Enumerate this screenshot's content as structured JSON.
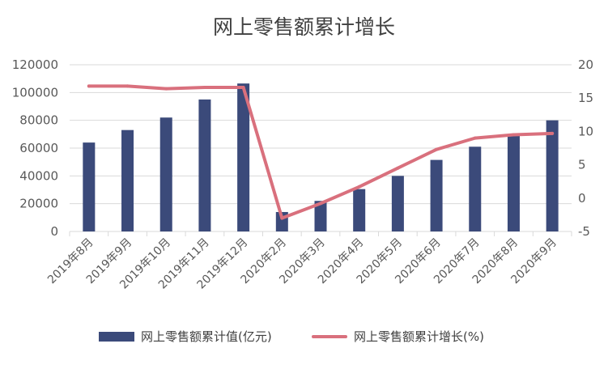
{
  "chart_data": {
    "type": "bar",
    "title": "网上零售额累计增长",
    "categories": [
      "2019年8月",
      "2019年9月",
      "2019年10月",
      "2019年11月",
      "2019年12月",
      "2020年2月",
      "2020年3月",
      "2020年4月",
      "2020年5月",
      "2020年6月",
      "2020年7月",
      "2020年8月",
      "2020年9月"
    ],
    "series": [
      {
        "name": "网上零售额累计值(亿元)",
        "type": "bar",
        "axis": "left",
        "color": "#3b4a7a",
        "values": [
          64000,
          73000,
          82000,
          95000,
          106500,
          14000,
          22000,
          30500,
          40000,
          51500,
          61000,
          70000,
          80000
        ]
      },
      {
        "name": "网上零售额累计增长(%)",
        "type": "line",
        "axis": "right",
        "color": "#d9707d",
        "values": [
          16.8,
          16.8,
          16.4,
          16.6,
          16.6,
          -3.0,
          -0.8,
          1.7,
          4.5,
          7.3,
          9.0,
          9.5,
          9.7
        ]
      }
    ],
    "y_left": {
      "min": 0,
      "max": 120000,
      "ticks": [
        0,
        20000,
        40000,
        60000,
        80000,
        100000,
        120000
      ]
    },
    "y_right": {
      "min": -5,
      "max": 20,
      "ticks": [
        -5,
        0,
        5,
        10,
        15,
        20
      ]
    },
    "grid": true,
    "legend_position": "bottom"
  }
}
